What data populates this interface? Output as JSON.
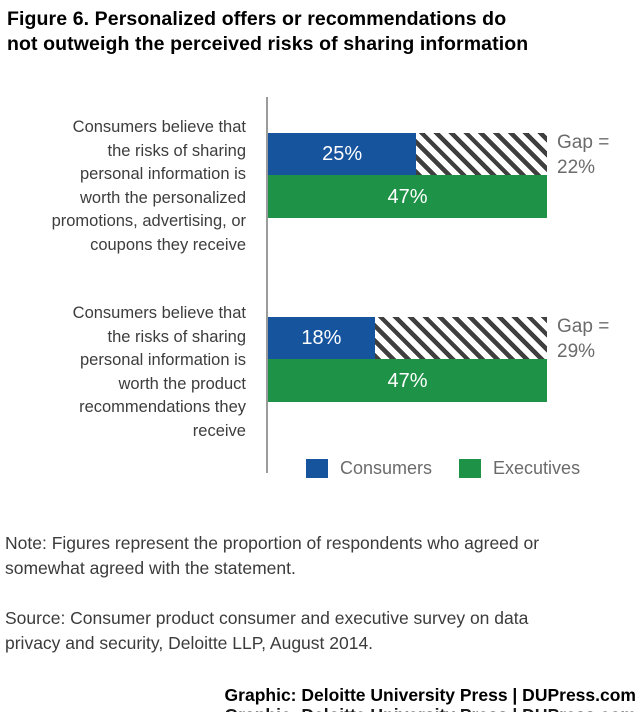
{
  "title": "Figure 6. Personalized offers or recommendations do\nnot outweigh the perceived risks of sharing information",
  "chart_data": {
    "type": "bar",
    "orientation": "horizontal",
    "title": "Figure 6. Personalized offers or recommendations do not outweigh the perceived risks of sharing information",
    "categories": [
      "Consumers believe that the risks of sharing personal information is worth the personalized promotions, advertising, or coupons they receive",
      "Consumers believe that the risks of sharing personal information is worth the product recommendations they receive"
    ],
    "series": [
      {
        "name": "Consumers",
        "color": "#17549e",
        "values": [
          25,
          18
        ]
      },
      {
        "name": "Executives",
        "color": "#1e9247",
        "values": [
          47,
          47
        ]
      }
    ],
    "gaps": [
      {
        "value": 22,
        "label_line1": "Gap =",
        "label_line2": "22%"
      },
      {
        "value": 29,
        "label_line1": "Gap =",
        "label_line2": "29%"
      }
    ],
    "value_unit": "%",
    "xlim": [
      0,
      47
    ],
    "grid": false,
    "legend_position": "bottom",
    "axis_color": "#9b9b9b",
    "gap_hatch": {
      "stripe_color": "#3f3f3f",
      "background": "#ffffff",
      "direction": "backslash"
    }
  },
  "groups": [
    {
      "category_display": "Consumers believe that\nthe risks of sharing\npersonal information is\nworth the personalized\npromotions, advertising, or\ncoupons they receive",
      "consumers_value_label": "25%",
      "executives_value_label": "47%",
      "gap_line1": "Gap =",
      "gap_line2": "22%"
    },
    {
      "category_display": "Consumers believe that\nthe risks of sharing\npersonal information is\nworth the product\nrecommendations they\nreceive",
      "consumers_value_label": "18%",
      "executives_value_label": "47%",
      "gap_line1": "Gap =",
      "gap_line2": "29%"
    }
  ],
  "legend": [
    {
      "label": "Consumers",
      "color": "#17549e"
    },
    {
      "label": "Executives",
      "color": "#1e9247"
    }
  ],
  "note": "Note: Figures represent the proportion of respondents who agreed or\nsomewhat agreed with the statement.",
  "source": "Source: Consumer product consumer and executive survey on data\nprivacy and security, Deloitte LLP, August 2014.",
  "credit": "Graphic: Deloitte University Press  |  DUPress.com"
}
